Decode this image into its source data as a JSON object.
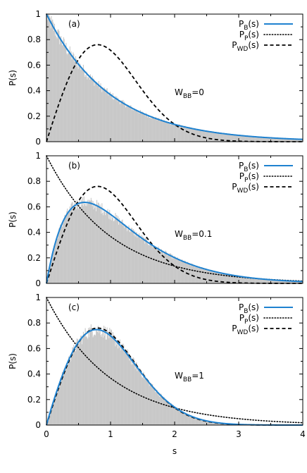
{
  "colors": {
    "background": "#ffffff",
    "histogram": "#c8c8c8",
    "PB": "#1f82d0",
    "PP": "#000000",
    "PWD": "#000000",
    "axis": "#000000"
  },
  "chart_data": [
    {
      "type": "line",
      "panel": "(a)",
      "annotation": {
        "base": "W",
        "sub": "BB",
        "rest": "=0"
      },
      "xlabel": "",
      "ylabel": "P(s)",
      "xlim": [
        0,
        4
      ],
      "ylim": [
        0,
        1
      ],
      "xticks": [],
      "yticks": [
        "0",
        "0.2",
        "0.4",
        "0.6",
        "0.8",
        "1"
      ],
      "legend_position": "top-right",
      "series": [
        {
          "name": "PB(s)",
          "legend": {
            "base": "P",
            "sub": "B",
            "rest": "(s)"
          },
          "style": "solid",
          "color": "#1f82d0",
          "function": "exp(-s)"
        },
        {
          "name": "PP(s)",
          "legend": {
            "base": "P",
            "sub": "P",
            "rest": "(s)"
          },
          "style": "dotted",
          "color": "#000000",
          "function": "exp(-s)"
        },
        {
          "name": "PWD(s)",
          "legend": {
            "base": "P",
            "sub": "WD",
            "rest": "(s)"
          },
          "style": "dashed",
          "color": "#000000",
          "function": "(pi/2) s exp(-pi s^2/4)"
        }
      ],
      "histogram": {
        "type": "bar",
        "bin_width": 0.01,
        "range": [
          0,
          4
        ],
        "follows": "exp(-s)",
        "noise_fraction": 0.08
      }
    },
    {
      "type": "line",
      "panel": "(b)",
      "annotation": {
        "base": "W",
        "sub": "BB",
        "rest": "=0.1"
      },
      "xlabel": "",
      "ylabel": "P(s)",
      "xlim": [
        0,
        4
      ],
      "ylim": [
        0,
        1
      ],
      "xticks": [],
      "yticks": [
        "0",
        "0.2",
        "0.4",
        "0.6",
        "0.8",
        "1"
      ],
      "legend_position": "top-right",
      "series": [
        {
          "name": "PB(s)",
          "legend": {
            "base": "P",
            "sub": "B",
            "rest": "(s)"
          },
          "style": "solid",
          "color": "#1f82d0",
          "function": "interpolated Brody-like, peak 0.68 at s=0.6"
        },
        {
          "name": "PP(s)",
          "legend": {
            "base": "P",
            "sub": "P",
            "rest": "(s)"
          },
          "style": "dotted",
          "color": "#000000",
          "function": "exp(-s)"
        },
        {
          "name": "PWD(s)",
          "legend": {
            "base": "P",
            "sub": "WD",
            "rest": "(s)"
          },
          "style": "dashed",
          "color": "#000000",
          "function": "(pi/2) s exp(-pi s^2/4)"
        }
      ],
      "histogram": {
        "type": "bar",
        "bin_width": 0.01,
        "range": [
          0,
          4
        ],
        "follows": "PB(s)",
        "noise_fraction": 0.08
      }
    },
    {
      "type": "line",
      "panel": "(c)",
      "annotation": {
        "base": "W",
        "sub": "BB",
        "rest": "=1"
      },
      "xlabel": "s",
      "ylabel": "P(s)",
      "xlim": [
        0,
        4
      ],
      "ylim": [
        0,
        1
      ],
      "xticks": [
        "0",
        "1",
        "2",
        "3",
        "4"
      ],
      "yticks": [
        "0",
        "0.2",
        "0.4",
        "0.6",
        "0.8",
        "1"
      ],
      "legend_position": "top-right",
      "series": [
        {
          "name": "PB(s)",
          "legend": {
            "base": "P",
            "sub": "B",
            "rest": "(s)"
          },
          "style": "solid",
          "color": "#1f82d0",
          "function": "Brody-like, peak 0.74 at s=0.8"
        },
        {
          "name": "PP(s)",
          "legend": {
            "base": "P",
            "sub": "P",
            "rest": "(s)"
          },
          "style": "dotted",
          "color": "#000000",
          "function": "exp(-s)"
        },
        {
          "name": "PWD(s)",
          "legend": {
            "base": "P",
            "sub": "WD",
            "rest": "(s)"
          },
          "style": "dashed",
          "color": "#000000",
          "function": "(pi/2) s exp(-pi s^2/4)"
        }
      ],
      "histogram": {
        "type": "bar",
        "bin_width": 0.01,
        "range": [
          0,
          4
        ],
        "follows": "PB(s)",
        "noise_fraction": 0.08
      }
    }
  ]
}
